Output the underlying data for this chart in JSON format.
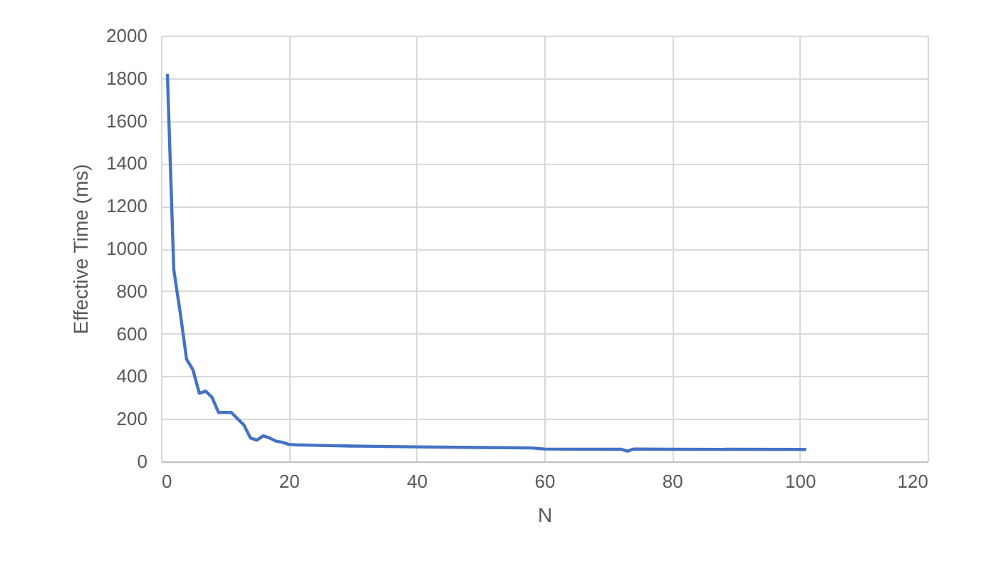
{
  "chart_data": {
    "type": "line",
    "xlabel": "N",
    "ylabel": "Effective Time (ms)",
    "xlim": [
      0,
      120
    ],
    "xticks": [
      0,
      20,
      40,
      60,
      80,
      100,
      120
    ],
    "ylim": [
      0,
      2000
    ],
    "yticks": [
      0,
      200,
      400,
      600,
      800,
      1000,
      1200,
      1400,
      1600,
      1800,
      2000
    ],
    "grid": true,
    "marker": "none",
    "line_style": "solid",
    "series": [
      {
        "color": "#4472c4",
        "x": [
          1,
          2,
          3,
          4,
          5,
          6,
          7,
          8,
          9,
          10,
          11,
          12,
          13,
          14,
          15,
          16,
          17,
          18,
          19,
          20,
          21,
          25,
          30,
          40,
          50,
          58,
          60,
          70,
          72,
          73,
          74,
          80,
          101
        ],
        "values": [
          1820,
          900,
          700,
          480,
          430,
          320,
          330,
          300,
          230,
          230,
          230,
          200,
          170,
          110,
          100,
          120,
          110,
          95,
          90,
          80,
          78,
          75,
          72,
          68,
          65,
          63,
          58,
          57,
          57,
          48,
          58,
          57,
          56
        ]
      }
    ]
  }
}
